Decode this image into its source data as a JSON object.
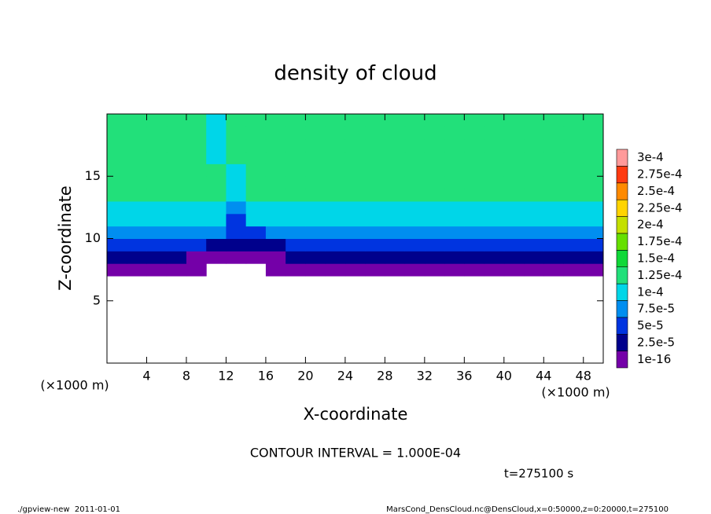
{
  "chart_data": {
    "type": "heatmap",
    "title": "density of cloud",
    "x_label": "X-coordinate",
    "y_label": "Z-coordinate",
    "x_unit": "(×1000 m)",
    "y_unit": "(×1000 m)",
    "annotation": "CONTOUR INTERVAL = 1.000E-04",
    "time_label": "t=275100 s",
    "footer_left": "./gpview-new  2011-01-01",
    "footer_right": "MarsCond_DensCloud.nc@DensCloud,x=0:50000,z=0:20000,t=275100",
    "xlim": [
      0,
      50
    ],
    "ylim": [
      0,
      20
    ],
    "xticks": [
      4,
      8,
      12,
      16,
      20,
      24,
      28,
      32,
      36,
      40,
      44,
      48
    ],
    "yticks": [
      5,
      10,
      15
    ],
    "x": [
      1,
      3,
      5,
      7,
      9,
      11,
      13,
      15,
      17,
      19,
      21,
      23,
      25,
      27,
      29,
      31,
      33,
      35,
      37,
      39,
      41,
      43,
      45,
      47,
      49
    ],
    "z": [
      7.5,
      8.5,
      9.5,
      10.5,
      11.5,
      12.5,
      13.5,
      14.5,
      15.5,
      16.5,
      17.5,
      18.5,
      19.5
    ],
    "values": [
      [
        1e-05,
        1e-05,
        1e-05,
        1e-05,
        1e-05,
        null,
        null,
        null,
        1e-05,
        1e-05,
        1e-05,
        1e-05,
        1e-05,
        1e-05,
        1e-05,
        1e-05,
        1e-05,
        1e-05,
        1e-05,
        1e-05,
        1e-05,
        1e-05,
        1e-05,
        1e-05,
        1e-05
      ],
      [
        3e-05,
        3e-05,
        3e-05,
        3e-05,
        1e-05,
        1e-05,
        1e-05,
        1e-05,
        1e-05,
        3e-05,
        3e-05,
        3e-05,
        3e-05,
        3e-05,
        3e-05,
        3e-05,
        3e-05,
        3e-05,
        3e-05,
        3e-05,
        3e-05,
        3e-05,
        3e-05,
        3e-05,
        3e-05
      ],
      [
        6e-05,
        6e-05,
        6e-05,
        6e-05,
        6e-05,
        4e-05,
        4e-05,
        4e-05,
        4e-05,
        6e-05,
        6e-05,
        6e-05,
        6e-05,
        6e-05,
        6e-05,
        6e-05,
        6e-05,
        6e-05,
        6e-05,
        6e-05,
        6e-05,
        6e-05,
        6e-05,
        6e-05,
        6e-05
      ],
      [
        9e-05,
        9e-05,
        9e-05,
        9e-05,
        9e-05,
        9e-05,
        5e-05,
        5e-05,
        9e-05,
        9e-05,
        9e-05,
        9e-05,
        9e-05,
        9e-05,
        9e-05,
        9e-05,
        9e-05,
        9e-05,
        9e-05,
        9e-05,
        9e-05,
        9e-05,
        9e-05,
        9e-05,
        9e-05
      ],
      [
        0.00011,
        0.00011,
        0.00011,
        0.00011,
        0.00011,
        0.00011,
        6e-05,
        0.00011,
        0.00011,
        0.00011,
        0.00011,
        0.00011,
        0.00011,
        0.00011,
        0.00011,
        0.00011,
        0.00011,
        0.00011,
        0.00011,
        0.00011,
        0.00011,
        0.00011,
        0.00011,
        0.00011,
        0.00011
      ],
      [
        0.00012,
        0.00012,
        0.00012,
        0.00012,
        0.00012,
        0.00012,
        8e-05,
        0.00012,
        0.00012,
        0.00012,
        0.00012,
        0.00012,
        0.00012,
        0.00012,
        0.00012,
        0.00012,
        0.00012,
        0.00012,
        0.00012,
        0.00012,
        0.00012,
        0.00012,
        0.00012,
        0.00012,
        0.00012
      ],
      [
        0.00013,
        0.00013,
        0.00013,
        0.00013,
        0.00013,
        0.00013,
        0.00011,
        0.00013,
        0.00013,
        0.00013,
        0.00013,
        0.00013,
        0.00013,
        0.00013,
        0.00013,
        0.00013,
        0.00013,
        0.00013,
        0.00013,
        0.00013,
        0.00013,
        0.00013,
        0.00013,
        0.00013,
        0.00013
      ],
      [
        0.00013,
        0.00013,
        0.00013,
        0.00013,
        0.00013,
        0.00013,
        0.00011,
        0.00013,
        0.00013,
        0.00013,
        0.00013,
        0.00013,
        0.00013,
        0.00013,
        0.00013,
        0.00013,
        0.00013,
        0.00013,
        0.00013,
        0.00013,
        0.00013,
        0.00013,
        0.00013,
        0.00013,
        0.00013
      ],
      [
        0.00013,
        0.00013,
        0.00013,
        0.00013,
        0.00013,
        0.00013,
        0.00011,
        0.00013,
        0.00013,
        0.00013,
        0.00013,
        0.00013,
        0.00013,
        0.00013,
        0.00013,
        0.00013,
        0.00013,
        0.00013,
        0.00013,
        0.00013,
        0.00013,
        0.00013,
        0.00013,
        0.00013,
        0.00013
      ],
      [
        0.00013,
        0.00013,
        0.00013,
        0.00013,
        0.00013,
        0.00011,
        0.00013,
        0.00013,
        0.00013,
        0.00013,
        0.00013,
        0.00013,
        0.00013,
        0.00013,
        0.00013,
        0.00013,
        0.00013,
        0.00013,
        0.00013,
        0.00013,
        0.00013,
        0.00013,
        0.00013,
        0.00013,
        0.00013
      ],
      [
        0.00013,
        0.00013,
        0.00013,
        0.00013,
        0.00013,
        0.00011,
        0.00013,
        0.00013,
        0.00013,
        0.00013,
        0.00013,
        0.00013,
        0.00013,
        0.00013,
        0.00013,
        0.00013,
        0.00013,
        0.00013,
        0.00013,
        0.00013,
        0.00013,
        0.00013,
        0.00013,
        0.00013,
        0.00013
      ],
      [
        0.00013,
        0.00013,
        0.00013,
        0.00013,
        0.00013,
        0.00011,
        0.00013,
        0.00013,
        0.00013,
        0.00013,
        0.00013,
        0.00013,
        0.00013,
        0.00013,
        0.00013,
        0.00013,
        0.00013,
        0.00013,
        0.00013,
        0.00013,
        0.00013,
        0.00013,
        0.00013,
        0.00013,
        0.00013
      ],
      [
        0.00013,
        0.00013,
        0.00013,
        0.00013,
        0.00013,
        0.00011,
        0.00013,
        0.00013,
        0.00013,
        0.00013,
        0.00013,
        0.00013,
        0.00013,
        0.00013,
        0.00013,
        0.00013,
        0.00013,
        0.00013,
        0.00013,
        0.00013,
        0.00013,
        0.00013,
        0.00013,
        0.00013,
        0.00013
      ]
    ],
    "levels": [
      {
        "value": 1e-16,
        "label": "1e-16"
      },
      {
        "value": 2.5e-05,
        "label": "2.5e-5"
      },
      {
        "value": 5e-05,
        "label": "5e-5"
      },
      {
        "value": 7.5e-05,
        "label": "7.5e-5"
      },
      {
        "value": 0.0001,
        "label": "1e-4"
      },
      {
        "value": 0.000125,
        "label": "1.25e-4"
      },
      {
        "value": 0.00015,
        "label": "1.5e-4"
      },
      {
        "value": 0.000175,
        "label": "1.75e-4"
      },
      {
        "value": 0.0002,
        "label": "2e-4"
      },
      {
        "value": 0.000225,
        "label": "2.25e-4"
      },
      {
        "value": 0.00025,
        "label": "2.5e-4"
      },
      {
        "value": 0.000275,
        "label": "2.75e-4"
      },
      {
        "value": 0.0003,
        "label": "3e-4"
      }
    ],
    "level_colors": [
      "#7400a8",
      "#00008c",
      "#0034e0",
      "#008ef0",
      "#00d6e8",
      "#22e07a",
      "#10d838",
      "#66e000",
      "#c4e000",
      "#ffd400",
      "#ff8a00",
      "#ff3a10",
      "#ff9a9a"
    ]
  }
}
